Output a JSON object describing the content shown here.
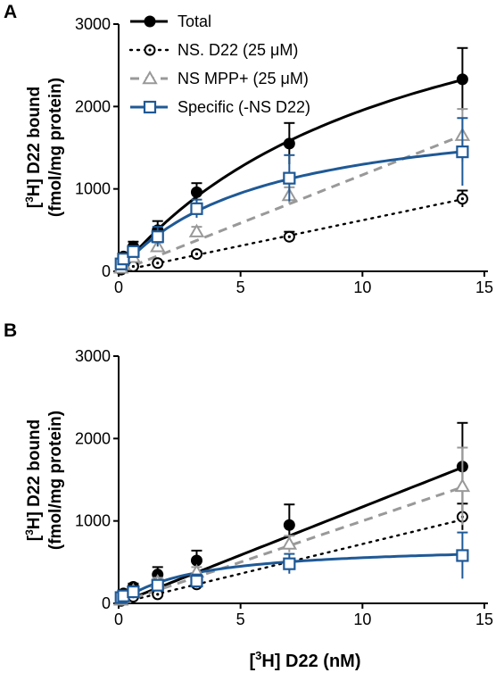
{
  "legend": [
    {
      "label": "Total",
      "color": "#000000",
      "marker": "filled-circle",
      "dash": "solid"
    },
    {
      "label": "NS. D22 (25 μM)",
      "color": "#000000",
      "marker": "dotted-circle",
      "dash": "dotted"
    },
    {
      "label": "NS  MPP+ (25 μM)",
      "color": "#999999",
      "marker": "triangle",
      "dash": "dashed"
    },
    {
      "label": "Specific (-NS D22)",
      "color": "#1f5996",
      "marker": "square",
      "dash": "solid"
    }
  ],
  "ylabel_line1": "[3H] D22 bound",
  "ylabel_line2": "(fmol/mg protein)",
  "xlabel": "[3H] D22 (nM)",
  "chart_data": [
    {
      "panel": "A",
      "type": "scatter",
      "xlim": [
        0,
        15
      ],
      "ylim": [
        0,
        3000
      ],
      "xticks": [
        0,
        5,
        10,
        15
      ],
      "yticks": [
        0,
        1000,
        2000,
        3000
      ],
      "series": [
        {
          "name": "Total",
          "x": [
            0.1,
            0.2,
            0.6,
            1.6,
            3.2,
            7.0,
            14.1
          ],
          "y": [
            100,
            180,
            300,
            500,
            960,
            1550,
            2330
          ],
          "err": [
            30,
            40,
            60,
            110,
            110,
            250,
            380
          ],
          "fit": {
            "model": "hyperbola",
            "Bmax": 4300,
            "Kd": 12
          }
        },
        {
          "name": "NS. D22 (25 μM)",
          "x": [
            0.1,
            0.2,
            0.6,
            1.6,
            3.2,
            7.0,
            14.1
          ],
          "y": [
            20,
            40,
            60,
            100,
            210,
            420,
            880
          ],
          "err": [
            10,
            10,
            20,
            20,
            30,
            60,
            100
          ],
          "fit": {
            "model": "linear",
            "slope": 62
          }
        },
        {
          "name": "NS  MPP+ (25 μM)",
          "x": [
            0.1,
            0.2,
            0.6,
            1.6,
            3.2,
            7.0,
            14.1
          ],
          "y": [
            40,
            80,
            170,
            300,
            480,
            920,
            1650
          ],
          "err": [
            20,
            30,
            40,
            50,
            60,
            100,
            320
          ],
          "fit": {
            "model": "linear",
            "slope": 117
          }
        },
        {
          "name": "Specific (-NS D22)",
          "x": [
            0.1,
            0.2,
            0.6,
            1.6,
            3.2,
            7.0,
            14.1
          ],
          "y": [
            90,
            150,
            240,
            420,
            760,
            1130,
            1450
          ],
          "err": [
            30,
            40,
            60,
            120,
            110,
            280,
            410
          ],
          "fit": {
            "model": "hyperbola",
            "Bmax": 2050,
            "Kd": 5.8
          }
        }
      ]
    },
    {
      "panel": "B",
      "type": "scatter",
      "xlim": [
        0,
        15
      ],
      "ylim": [
        0,
        3000
      ],
      "xticks": [
        0,
        5,
        10,
        15
      ],
      "yticks": [
        0,
        1000,
        2000,
        3000
      ],
      "series": [
        {
          "name": "Total",
          "x": [
            0.1,
            0.2,
            0.6,
            1.6,
            3.2,
            7.0,
            14.1
          ],
          "y": [
            80,
            120,
            200,
            350,
            520,
            950,
            1660
          ],
          "err": [
            20,
            30,
            40,
            90,
            120,
            250,
            530
          ],
          "fit": {
            "model": "linear",
            "slope": 117
          }
        },
        {
          "name": "NS. D22 (25 μM)",
          "x": [
            0.1,
            0.2,
            0.6,
            1.6,
            3.2,
            7.0,
            14.1
          ],
          "y": [
            30,
            50,
            80,
            110,
            230,
            480,
            1050
          ],
          "err": [
            10,
            10,
            20,
            30,
            40,
            60,
            160
          ],
          "fit": {
            "model": "linear",
            "slope": 72
          }
        },
        {
          "name": "NS  MPP+ (25 μM)",
          "x": [
            0.1,
            0.2,
            0.6,
            1.6,
            3.2,
            7.0,
            14.1
          ],
          "y": [
            40,
            70,
            150,
            260,
            380,
            720,
            1420
          ],
          "err": [
            15,
            20,
            30,
            50,
            60,
            100,
            470
          ],
          "fit": {
            "model": "linear",
            "slope": 100
          }
        },
        {
          "name": "Specific (-NS D22)",
          "x": [
            0.1,
            0.2,
            0.6,
            1.6,
            3.2,
            7.0,
            14.1
          ],
          "y": [
            70,
            90,
            140,
            220,
            270,
            480,
            580
          ],
          "err": [
            20,
            30,
            40,
            60,
            80,
            120,
            280
          ],
          "fit": {
            "model": "hyperbola",
            "Bmax": 720,
            "Kd": 3.0
          }
        }
      ]
    }
  ]
}
